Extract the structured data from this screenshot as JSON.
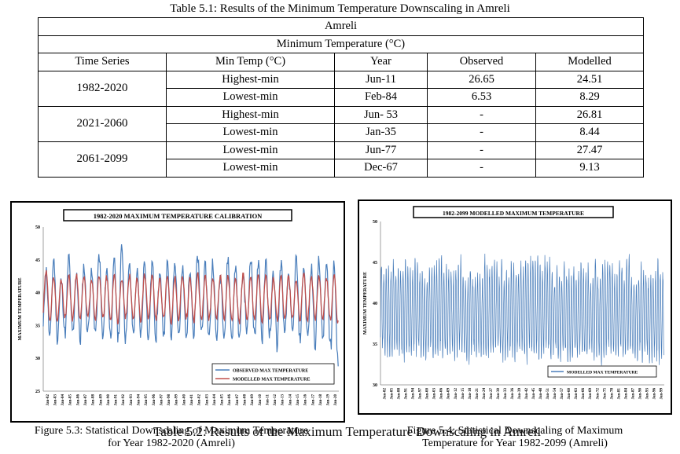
{
  "table": {
    "caption": "Table 5.1: Results of the Minimum Temperature Downscaling in Amreli",
    "location": "Amreli",
    "subtitle": "Minimum Temperature (°C)",
    "headers": [
      "Time Series",
      "Min Temp (°C)",
      "Year",
      "Observed",
      "Modelled"
    ],
    "groups": [
      {
        "series": "1982-2020",
        "rows": [
          {
            "label": "Highest-min",
            "year": "Jun-11",
            "observed": "26.65",
            "modelled": "24.51"
          },
          {
            "label": "Lowest-min",
            "year": "Feb-84",
            "observed": "6.53",
            "modelled": "8.29"
          }
        ]
      },
      {
        "series": "2021-2060",
        "rows": [
          {
            "label": "Highest-min",
            "year": "Jun- 53",
            "observed": "-",
            "modelled": "26.81"
          },
          {
            "label": "Lowest-min",
            "year": "Jan-35",
            "observed": "-",
            "modelled": "8.44"
          }
        ]
      },
      {
        "series": "2061-2099",
        "rows": [
          {
            "label": "Lowest-min",
            "year": "Jun-77",
            "observed": "-",
            "modelled": "27.47"
          },
          {
            "label": "Lowest-min",
            "year": "Dec-67",
            "observed": "-",
            "modelled": "9.13"
          }
        ]
      }
    ]
  },
  "figures": {
    "left_caption_1": "Figure 5.3: Statistical Downscaling of Maximum Temperature",
    "left_caption_2": "for Year 1982-2020 (Amreli)",
    "right_caption_1": "Figure 5.4: Statistical Downscaling of Maximum",
    "right_caption_2": "Temperature for Year 1982-2099 (Amreli)",
    "overlay_caption": "Table 5.2: Results of the Maximum Temperature Downscaling in Amreli"
  },
  "chart_data": [
    {
      "type": "line",
      "title": "1982-2020 MAXIMUM TEMPERATURE CALIBRATION",
      "ylabel": "MAXIMUM TEMPERATURE",
      "ylim": [
        25,
        50
      ],
      "yticks": [
        25,
        30,
        35,
        40,
        45,
        50
      ],
      "x": [
        "Jan-82",
        "Jan-83",
        "Jan-84",
        "Jan-85",
        "Jan-86",
        "Jan-87",
        "Jan-88",
        "Jan-89",
        "Jan-90",
        "Jan-91",
        "Jan-92",
        "Jan-93",
        "Jan-94",
        "Jan-95",
        "Jan-96",
        "Jan-97",
        "Jan-98",
        "Jan-99",
        "Jan-00",
        "Jan-01",
        "Jan-02",
        "Jan-03",
        "Jan-04",
        "Jan-05",
        "Jan-06",
        "Jan-07",
        "Jan-08",
        "Jan-09",
        "Jan-10",
        "Jan-11",
        "Jan-12",
        "Jan-13",
        "Jan-14",
        "Jan-15",
        "Jan-16",
        "Jan-17",
        "Jan-18",
        "Jan-19",
        "Jan-20"
      ],
      "series": [
        {
          "name": "OBSERVED MAX TEMPERATURE",
          "color": "#4a7ebb",
          "summer_peaks": [
            43.5,
            45.2,
            41.8,
            45.4,
            43.2,
            44.1,
            42.9,
            45.8,
            43.6,
            44.7,
            47.1,
            44.0,
            43.1,
            45.0,
            44.6,
            42.8,
            44.2,
            45.1,
            43.4,
            44.0,
            45.5,
            43.9,
            44.8,
            42.6,
            45.3,
            44.1,
            43.0,
            45.7,
            44.4,
            45.0,
            43.3,
            44.6,
            42.9,
            45.2,
            44.0,
            43.7,
            45.4,
            44.3,
            45.1
          ],
          "winter_troughs": [
            33.0,
            32.9,
            33.8,
            33.5,
            32.6,
            33.9,
            34.1,
            32.8,
            33.4,
            33.2,
            32.7,
            34.0,
            33.6,
            32.5,
            33.1,
            34.2,
            33.0,
            33.7,
            32.9,
            33.3,
            34.3,
            33.1,
            32.8,
            33.9,
            33.2,
            32.6,
            34.0,
            33.4,
            32.9,
            33.5,
            31.6,
            33.1,
            33.8,
            32.7,
            33.3,
            32.2,
            33.0,
            32.4,
            29.4
          ]
        },
        {
          "name": "MODELLED MAX TEMPERATURE",
          "color": "#c0504d",
          "summer_peaks": [
            43.2,
            42.5,
            42.0,
            42.6,
            42.8,
            42.3,
            41.9,
            42.7,
            42.4,
            42.9,
            42.1,
            42.6,
            42.2,
            42.8,
            42.5,
            42.0,
            42.7,
            42.3,
            42.6,
            42.1,
            42.9,
            42.4,
            42.2,
            42.7,
            42.5,
            42.0,
            42.8,
            42.3,
            42.6,
            42.4,
            42.1,
            42.7,
            42.5,
            42.2,
            42.8,
            42.4,
            42.6,
            42.3,
            42.7
          ],
          "winter_troughs": [
            36.0,
            35.5,
            36.2,
            35.8,
            35.9,
            36.3,
            35.7,
            36.1,
            35.6,
            35.4,
            36.2,
            35.9,
            35.7,
            36.0,
            35.8,
            36.1,
            35.5,
            35.9,
            36.2,
            35.6,
            35.8,
            36.0,
            35.7,
            36.1,
            35.9,
            35.4,
            36.0,
            35.8,
            35.6,
            36.2,
            35.7,
            35.9,
            36.1,
            35.5,
            35.8,
            36.0,
            35.6,
            35.9,
            35.3
          ]
        }
      ],
      "legend": "bottom-right",
      "grid": false
    },
    {
      "type": "line",
      "title": "1982-2099 MODELLED MAXIMUM TEMPERATURE",
      "ylabel": "MAXIMUM TEMPERATURE",
      "ylim": [
        30,
        50
      ],
      "yticks": [
        30,
        35,
        40,
        45,
        50
      ],
      "x": [
        "Jan-82",
        "Jan-85",
        "Jan-88",
        "Jan-91",
        "Jan-94",
        "Jan-97",
        "Jan-00",
        "Jan-03",
        "Jan-06",
        "Jan-09",
        "Jan-12",
        "Jan-15",
        "Jan-18",
        "Jan-21",
        "Jan-24",
        "Jan-27",
        "Jan-30",
        "Jan-33",
        "Jan-36",
        "Jan-39",
        "Jan-42",
        "Jan-45",
        "Jan-48",
        "Jan-51",
        "Jan-54",
        "Jan-57",
        "Jan-60",
        "Jan-63",
        "Jan-66",
        "Jan-69",
        "Jan-72",
        "Jan-75",
        "Jan-78",
        "Jan-81",
        "Jan-84",
        "Jan-87",
        "Jan-90",
        "Jan-93",
        "Jan-96",
        "Jan-99"
      ],
      "series": [
        {
          "name": "MODELLED MAX TEMPERATURE",
          "color": "#4a7ebb",
          "range": [
            32.7,
            45.6
          ],
          "mean": 38.8
        }
      ],
      "legend": "bottom-right",
      "grid": false
    }
  ]
}
